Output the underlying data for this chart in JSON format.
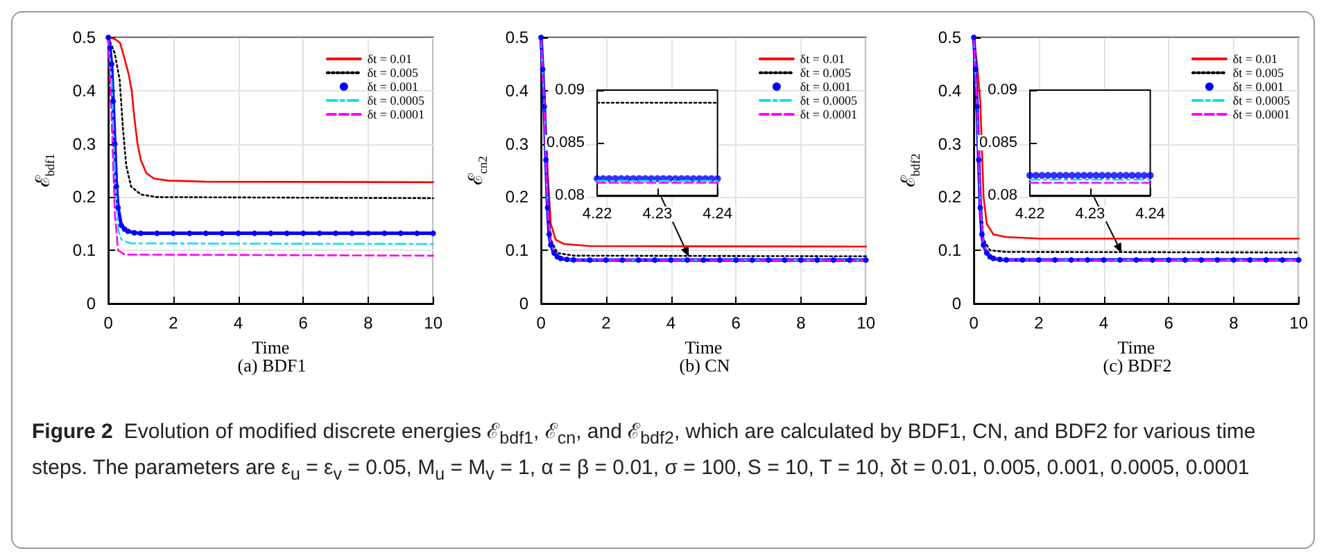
{
  "chart_data": [
    {
      "type": "line",
      "title": "(a) BDF1",
      "xlabel": "Time",
      "ylabel": "ℰ$_{bdf1}$",
      "xlim": [
        0,
        10
      ],
      "ylim": [
        0,
        0.5
      ],
      "xticks": [
        0,
        2,
        4,
        6,
        8,
        10
      ],
      "yticks": [
        0,
        0.1,
        0.2,
        0.3,
        0.4,
        0.5
      ],
      "grid": true,
      "legend": "top right",
      "annotations": [
        "Figure 2",
        "Evolution of modified discrete energies ℰ$_{bdf1}$, ℰ$_{cn}$, and ℰ$_{bdf2}$, which are calculated by BDF1, CN, and BDF2 for various time steps. The parameters are ε$_{u}$ = ε$_{v}$ = 0.05, M$_{u}$ = M$_{v}$ = 1, α = β = 0.01, σ = 100, S = 10, T = 10, δt = 0.01, 0.005, 0.001, 0.0005, 0.0001"
      ],
      "series": [
        {
          "name": "δt = 0.01",
          "color": "#ff0000",
          "line_style": "solid",
          "marker": "none",
          "x": [
            0,
            0.2,
            0.36,
            0.5,
            0.63,
            0.72,
            0.8,
            0.9,
            1.0,
            1.17,
            1.4,
            1.84,
            3,
            10
          ],
          "values": [
            0.5,
            0.497,
            0.49,
            0.46,
            0.43,
            0.4,
            0.35,
            0.3,
            0.27,
            0.245,
            0.235,
            0.231,
            0.229,
            0.228
          ]
        },
        {
          "name": "δt = 0.005",
          "color": "#000000",
          "line_style": "dotted",
          "marker": "none",
          "x": [
            0,
            0.2,
            0.35,
            0.45,
            0.55,
            0.7,
            1,
            1.5,
            10
          ],
          "values": [
            0.5,
            0.47,
            0.42,
            0.33,
            0.26,
            0.22,
            0.205,
            0.2,
            0.198
          ]
        },
        {
          "name": "δt = 0.001",
          "color": "#0000ff",
          "line_style": "solid",
          "marker": "circle",
          "x": [
            0,
            0.05,
            0.1,
            0.15,
            0.2,
            0.25,
            0.3,
            0.4,
            0.5,
            0.6,
            0.8,
            1,
            1.5,
            2,
            2.5,
            3,
            3.5,
            4,
            4.5,
            5,
            5.5,
            6,
            6.5,
            7,
            7.5,
            8,
            8.5,
            9,
            9.5,
            10
          ],
          "values": [
            0.5,
            0.48,
            0.45,
            0.38,
            0.3,
            0.22,
            0.18,
            0.147,
            0.14,
            0.136,
            0.133,
            0.132,
            0.132,
            0.132,
            0.132,
            0.132,
            0.132,
            0.132,
            0.132,
            0.132,
            0.132,
            0.132,
            0.132,
            0.132,
            0.132,
            0.132,
            0.132,
            0.132,
            0.132,
            0.132
          ]
        },
        {
          "name": "δt = 0.0005",
          "color": "#00e5ee",
          "line_style": "dashdot",
          "marker": "none",
          "x": [
            0,
            0.1,
            0.2,
            0.3,
            0.4,
            0.7,
            10
          ],
          "values": [
            0.5,
            0.42,
            0.25,
            0.14,
            0.12,
            0.113,
            0.112
          ]
        },
        {
          "name": "δt = 0.0001",
          "color": "#ff00ff",
          "line_style": "dashed",
          "marker": "none",
          "x": [
            0,
            0.1,
            0.2,
            0.3,
            0.5,
            10
          ],
          "values": [
            0.5,
            0.35,
            0.17,
            0.1,
            0.092,
            0.09
          ]
        }
      ]
    },
    {
      "type": "line",
      "title": "(b) CN",
      "xlabel": "Time",
      "ylabel": "ℰ$_{cn2}$",
      "xlim": [
        0,
        10
      ],
      "ylim": [
        0,
        0.5
      ],
      "xticks": [
        0,
        2,
        4,
        6,
        8,
        10
      ],
      "yticks": [
        0,
        0.1,
        0.2,
        0.3,
        0.4,
        0.5
      ],
      "grid": true,
      "legend": "top right",
      "series": [
        {
          "name": "δt = 0.01",
          "color": "#ff0000",
          "line_style": "solid",
          "marker": "none",
          "x": [
            0,
            0.1,
            0.2,
            0.3,
            0.45,
            0.7,
            1.5,
            10
          ],
          "values": [
            0.5,
            0.4,
            0.25,
            0.15,
            0.12,
            0.112,
            0.108,
            0.107
          ]
        },
        {
          "name": "δt = 0.005",
          "color": "#000000",
          "line_style": "dotted",
          "marker": "none",
          "x": [
            0,
            0.1,
            0.2,
            0.3,
            0.5,
            1,
            10
          ],
          "values": [
            0.5,
            0.38,
            0.2,
            0.12,
            0.095,
            0.09,
            0.0888
          ]
        },
        {
          "name": "δt = 0.001",
          "color": "#0000ff",
          "line_style": "solid",
          "marker": "circle",
          "x": [
            0,
            0.05,
            0.1,
            0.15,
            0.2,
            0.25,
            0.3,
            0.4,
            0.5,
            0.6,
            0.8,
            1,
            1.5,
            2,
            2.5,
            3,
            3.5,
            4,
            4.5,
            5,
            5.5,
            6,
            6.5,
            7,
            7.5,
            8,
            8.5,
            9,
            9.5,
            10
          ],
          "values": [
            0.5,
            0.44,
            0.37,
            0.27,
            0.18,
            0.13,
            0.11,
            0.095,
            0.088,
            0.085,
            0.083,
            0.082,
            0.0816,
            0.0816,
            0.0816,
            0.0816,
            0.0816,
            0.0816,
            0.0816,
            0.0816,
            0.0816,
            0.0816,
            0.0816,
            0.0816,
            0.0816,
            0.0816,
            0.0816,
            0.0816,
            0.0816,
            0.0816
          ]
        },
        {
          "name": "δt = 0.0005",
          "color": "#00e5ee",
          "line_style": "dashdot",
          "marker": "none",
          "x": [
            0,
            0.1,
            0.2,
            0.3,
            0.5,
            1,
            10
          ],
          "values": [
            0.5,
            0.37,
            0.18,
            0.11,
            0.088,
            0.082,
            0.0814
          ]
        },
        {
          "name": "δt = 0.0001",
          "color": "#ff00ff",
          "line_style": "dashed",
          "marker": "none",
          "x": [
            0,
            0.1,
            0.2,
            0.3,
            0.5,
            1,
            10
          ],
          "values": [
            0.5,
            0.37,
            0.18,
            0.11,
            0.088,
            0.082,
            0.0812
          ]
        }
      ]
    },
    {
      "type": "line",
      "xlim": [
        4.22,
        4.24
      ],
      "ylim": [
        0.08,
        0.09
      ],
      "xticks": [
        4.22,
        4.23,
        4.24
      ],
      "yticks": [
        0.08,
        0.085,
        0.09
      ],
      "grid": false,
      "series": [
        {
          "color": "#000000",
          "line_style": "dotted",
          "marker": "none",
          "x": [
            4.22,
            4.24
          ],
          "values": [
            0.0888,
            0.0888
          ]
        },
        {
          "color": "#00e5ee",
          "line_style": "dashdot",
          "marker": "none",
          "x": [
            4.22,
            4.24
          ],
          "values": [
            0.0814,
            0.0814
          ]
        },
        {
          "color": "#ff00ff",
          "line_style": "dashed",
          "marker": "none",
          "x": [
            4.22,
            4.24
          ],
          "values": [
            0.0812,
            0.0812
          ]
        },
        {
          "type": "scatter",
          "color": "#0000ff",
          "marker": "circle",
          "x": [
            4.22,
            4.221,
            4.222,
            4.223,
            4.224,
            4.225,
            4.226,
            4.227,
            4.228,
            4.229,
            4.23,
            4.231,
            4.232,
            4.233,
            4.234,
            4.235,
            4.236,
            4.237,
            4.238,
            4.239,
            4.24
          ],
          "values": [
            0.0816,
            0.0816,
            0.0816,
            0.0816,
            0.0816,
            0.0816,
            0.0816,
            0.0816,
            0.0816,
            0.0816,
            0.0816,
            0.0816,
            0.0816,
            0.0816,
            0.0816,
            0.0816,
            0.0816,
            0.0816,
            0.0816,
            0.0816,
            0.0816
          ]
        }
      ]
    },
    {
      "type": "line",
      "title": "(c) BDF2",
      "xlabel": "Time",
      "ylabel": "ℰ$_{bdf2}$",
      "xlim": [
        0,
        10
      ],
      "ylim": [
        0,
        0.5
      ],
      "xticks": [
        0,
        2,
        4,
        6,
        8,
        10
      ],
      "yticks": [
        0,
        0.1,
        0.2,
        0.3,
        0.4,
        0.5
      ],
      "grid": true,
      "legend": "top right",
      "series": [
        {
          "name": "δt = 0.01",
          "color": "#ff0000",
          "line_style": "solid",
          "marker": "none",
          "x": [
            0,
            0.1,
            0.2,
            0.3,
            0.4,
            0.6,
            1,
            2,
            10
          ],
          "values": [
            0.5,
            0.45,
            0.38,
            0.2,
            0.15,
            0.13,
            0.125,
            0.122,
            0.122
          ]
        },
        {
          "name": "δt = 0.005",
          "color": "#000000",
          "line_style": "dotted",
          "marker": "none",
          "x": [
            0,
            0.1,
            0.2,
            0.3,
            0.5,
            1,
            10
          ],
          "values": [
            0.5,
            0.38,
            0.2,
            0.12,
            0.1,
            0.097,
            0.096
          ]
        },
        {
          "name": "δt = 0.001",
          "color": "#0000ff",
          "line_style": "solid",
          "marker": "circle",
          "x": [
            0,
            0.05,
            0.1,
            0.15,
            0.2,
            0.25,
            0.3,
            0.4,
            0.5,
            0.6,
            0.8,
            1,
            1.5,
            2,
            2.5,
            3,
            3.5,
            4,
            4.5,
            5,
            5.5,
            6,
            6.5,
            7,
            7.5,
            8,
            8.5,
            9,
            9.5,
            10
          ],
          "values": [
            0.5,
            0.44,
            0.37,
            0.27,
            0.18,
            0.13,
            0.11,
            0.095,
            0.088,
            0.085,
            0.083,
            0.082,
            0.0819,
            0.0819,
            0.0819,
            0.0819,
            0.0819,
            0.0819,
            0.0819,
            0.0819,
            0.0819,
            0.0819,
            0.0819,
            0.0819,
            0.0819,
            0.0819,
            0.0819,
            0.0819,
            0.0819,
            0.0819
          ]
        },
        {
          "name": "δt = 0.0005",
          "color": "#00e5ee",
          "line_style": "dashdot",
          "marker": "none",
          "x": [
            0,
            0.1,
            0.2,
            0.3,
            0.5,
            1,
            10
          ],
          "values": [
            0.5,
            0.37,
            0.18,
            0.11,
            0.088,
            0.082,
            0.0815
          ]
        },
        {
          "name": "δt = 0.0001",
          "color": "#ff00ff",
          "line_style": "dashed",
          "marker": "none",
          "x": [
            0,
            0.1,
            0.2,
            0.3,
            0.5,
            1,
            10
          ],
          "values": [
            0.5,
            0.37,
            0.18,
            0.11,
            0.088,
            0.082,
            0.0812
          ]
        }
      ]
    },
    {
      "type": "line",
      "xlim": [
        4.22,
        4.24
      ],
      "ylim": [
        0.08,
        0.09
      ],
      "xticks": [
        4.22,
        4.23,
        4.24
      ],
      "yticks": [
        0.08,
        0.085,
        0.09
      ],
      "grid": false,
      "series": [
        {
          "color": "#00e5ee",
          "line_style": "dashdot",
          "marker": "none",
          "x": [
            4.22,
            4.24
          ],
          "values": [
            0.0815,
            0.0815
          ]
        },
        {
          "color": "#ff00ff",
          "line_style": "dashed",
          "marker": "none",
          "x": [
            4.22,
            4.24
          ],
          "values": [
            0.0812,
            0.0812
          ]
        },
        {
          "type": "scatter",
          "color": "#0000ff",
          "marker": "circle",
          "x": [
            4.22,
            4.221,
            4.222,
            4.223,
            4.224,
            4.225,
            4.226,
            4.227,
            4.228,
            4.229,
            4.23,
            4.231,
            4.232,
            4.233,
            4.234,
            4.235,
            4.236,
            4.237,
            4.238,
            4.239,
            4.24
          ],
          "values": [
            0.0819,
            0.0819,
            0.0819,
            0.0819,
            0.0819,
            0.0819,
            0.0819,
            0.0819,
            0.0819,
            0.0819,
            0.0819,
            0.0819,
            0.0819,
            0.0819,
            0.0819,
            0.0819,
            0.0819,
            0.0819,
            0.0819,
            0.0819,
            0.0819
          ]
        }
      ]
    }
  ]
}
